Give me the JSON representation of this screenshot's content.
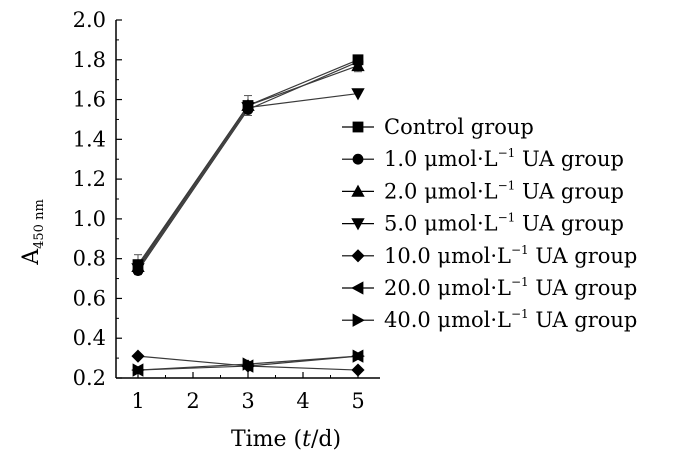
{
  "chart_data": {
    "type": "line",
    "title": "",
    "xlabel": "Time (t/d)",
    "xlabel_parts": {
      "prefix": "Time (",
      "var": "t",
      "suffix": "/d)"
    },
    "ylabel": "A450 nm",
    "ylabel_parts": {
      "main": "A",
      "sub": "450 nm"
    },
    "x_ticks": [
      "1",
      "2",
      "3",
      "4",
      "5"
    ],
    "y_ticks": [
      "0.2",
      "0.4",
      "0.6",
      "0.8",
      "1.0",
      "1.2",
      "1.4",
      "1.6",
      "1.8",
      "2.0"
    ],
    "xlim": [
      0.6,
      5.4
    ],
    "ylim": [
      0.2,
      2.0
    ],
    "x": [
      1,
      3,
      5
    ],
    "legend_position": "center-right",
    "series": [
      {
        "name": "Control group",
        "marker": "square",
        "values": [
          0.77,
          1.57,
          1.8
        ]
      },
      {
        "name": "1.0 μmol·L−1 UA group",
        "label_parts": {
          "conc": "1.0",
          "unit": "μmol·L",
          "exp": "−1",
          "tail": "UA group"
        },
        "marker": "circle",
        "values": [
          0.74,
          1.55,
          1.79
        ]
      },
      {
        "name": "2.0 μmol·L−1 UA group",
        "label_parts": {
          "conc": "2.0",
          "unit": "μmol·L",
          "exp": "−1",
          "tail": "UA group"
        },
        "marker": "triangle-up",
        "values": [
          0.76,
          1.57,
          1.77
        ]
      },
      {
        "name": "5.0 μmol·L−1 UA group",
        "label_parts": {
          "conc": "5.0",
          "unit": "μmol·L",
          "exp": "−1",
          "tail": "UA group"
        },
        "marker": "triangle-down",
        "values": [
          0.75,
          1.56,
          1.63
        ]
      },
      {
        "name": "10.0 μmol·L−1 UA group",
        "label_parts": {
          "conc": "10.0",
          "unit": "μmol·L",
          "exp": "−1",
          "tail": "UA group"
        },
        "marker": "diamond",
        "values": [
          0.31,
          0.26,
          0.24
        ]
      },
      {
        "name": "20.0 μmol·L−1 UA group",
        "label_parts": {
          "conc": "20.0",
          "unit": "μmol·L",
          "exp": "−1",
          "tail": "UA group"
        },
        "marker": "triangle-left",
        "values": [
          0.24,
          0.26,
          0.31
        ]
      },
      {
        "name": "40.0 μmol·L−1 UA group",
        "label_parts": {
          "conc": "40.0",
          "unit": "μmol·L",
          "exp": "−1",
          "tail": "UA group"
        },
        "marker": "triangle-right",
        "values": [
          0.24,
          0.27,
          0.31
        ]
      }
    ],
    "error_bars": [
      {
        "series": 0,
        "x": 3,
        "y": 1.57,
        "err": 0.05
      },
      {
        "series": 2,
        "x": 5,
        "y": 1.77,
        "err": 0.03
      },
      {
        "series": 0,
        "x": 1,
        "y": 0.77,
        "err": 0.05
      }
    ]
  }
}
